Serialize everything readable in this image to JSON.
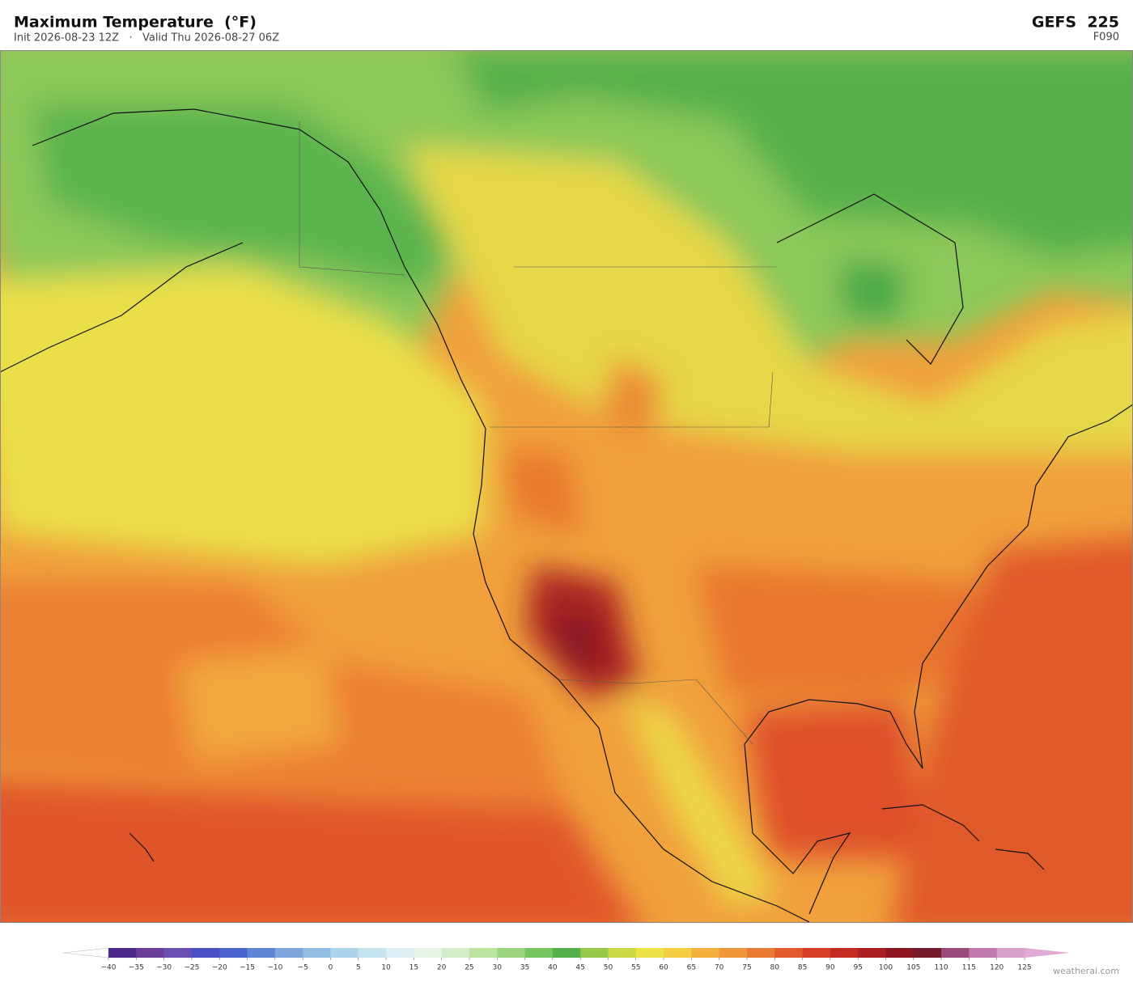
{
  "header": {
    "title": "Maximum Temperature  (°F)",
    "subtitle": "Init 2026-08-23 12Z   ·   Valid Thu 2026-08-27 06Z",
    "model": "GEFS  225",
    "forecast_hour": "F090"
  },
  "colorbar": {
    "ticks": [
      {
        "value": -40,
        "label": "−40"
      },
      {
        "value": -35,
        "label": "−35"
      },
      {
        "value": -30,
        "label": "−30"
      },
      {
        "value": -25,
        "label": "−25"
      },
      {
        "value": -20,
        "label": "−20"
      },
      {
        "value": -15,
        "label": "−15"
      },
      {
        "value": -10,
        "label": "−10"
      },
      {
        "value": -5,
        "label": "−5"
      },
      0,
      5,
      10,
      15,
      20,
      25,
      30,
      35,
      40,
      45,
      50,
      55,
      60,
      65,
      70,
      75,
      80,
      85,
      90,
      95,
      100,
      105,
      110,
      115,
      120,
      125
    ],
    "colors": [
      "#4b2a8c",
      "#6a3d9a",
      "#6b4fb0",
      "#4b4fc4",
      "#4a63cc",
      "#5e86d4",
      "#7ea6dc",
      "#94bde4",
      "#aed4ec",
      "#c6e4f0",
      "#dceff4",
      "#e8f4e8",
      "#d4ecc8",
      "#bde3a0",
      "#9dd67e",
      "#77c460",
      "#55b04c",
      "#96c84a",
      "#cad944",
      "#ede348",
      "#f4cf46",
      "#f2b03e",
      "#f0963a",
      "#e97a34",
      "#e25a2c",
      "#d83e26",
      "#c42a22",
      "#a81e22",
      "#8e1620",
      "#741a2a",
      "#9a4a7a",
      "#c07ab0",
      "#d8a0cc"
    ],
    "extend_low_color": "#ffffff",
    "extend_high_color": "#e0aad4"
  },
  "footer": {
    "credit": "weatherai.com"
  }
}
